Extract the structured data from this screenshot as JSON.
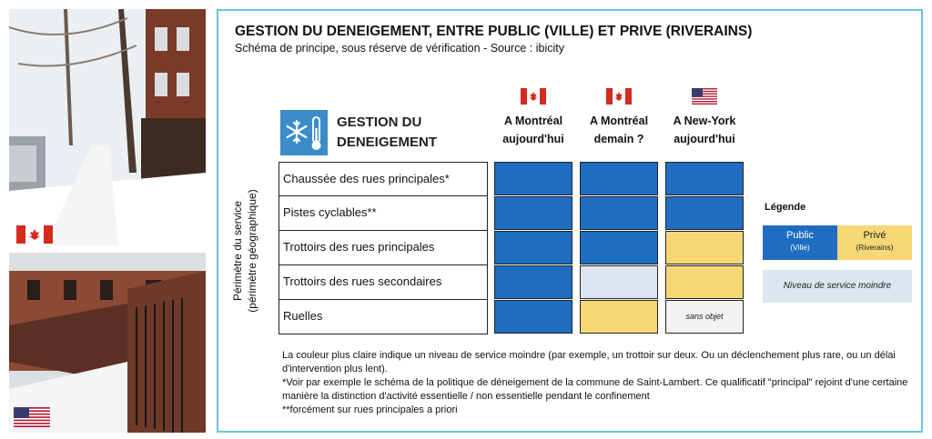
{
  "title": "GESTION DU DENEIGEMENT, ENTRE PUBLIC (VILLE) ET PRIVE (RIVERAINS)",
  "subtitle": "Schéma de principe, sous réserve de vérification - Source : ibicity",
  "header": {
    "icon": "snowflake-thermometer-icon",
    "label_line1": "GESTION DU",
    "label_line2": "DENEIGEMENT"
  },
  "columns": [
    {
      "flag": "canada-flag-icon",
      "line1": "A Montréal",
      "line2": "aujourd'hui"
    },
    {
      "flag": "canada-flag-icon",
      "line1": "A Montréal",
      "line2": "demain ?"
    },
    {
      "flag": "usa-flag-icon",
      "line1": "A New-York",
      "line2": "aujourd'hui"
    }
  ],
  "vertical_label": {
    "line1": "Périmètre du service",
    "line2": "(périmètre géographique)"
  },
  "rows": [
    {
      "label": "Chaussée des rues principales*",
      "cells": [
        {
          "status": "public",
          "text": ""
        },
        {
          "status": "public",
          "text": ""
        },
        {
          "status": "public",
          "text": ""
        }
      ]
    },
    {
      "label": "Pistes cyclables**",
      "cells": [
        {
          "status": "public",
          "text": ""
        },
        {
          "status": "public",
          "text": ""
        },
        {
          "status": "public",
          "text": ""
        }
      ]
    },
    {
      "label": "Trottoirs des rues principales",
      "cells": [
        {
          "status": "public",
          "text": ""
        },
        {
          "status": "public",
          "text": ""
        },
        {
          "status": "prive",
          "text": ""
        }
      ]
    },
    {
      "label": "Trottoirs des rues secondaires",
      "cells": [
        {
          "status": "public",
          "text": ""
        },
        {
          "status": "light",
          "text": ""
        },
        {
          "status": "prive",
          "text": ""
        }
      ]
    },
    {
      "label": "Ruelles",
      "cells": [
        {
          "status": "public",
          "text": ""
        },
        {
          "status": "prive",
          "text": ""
        },
        {
          "status": "na",
          "text": "sans objet"
        }
      ]
    }
  ],
  "legend": {
    "title": "Légende",
    "public_label": "Public",
    "public_sub": "(Ville)",
    "prive_label": "Privé",
    "prive_sub": "(Riverains)",
    "light_label": "Niveau de service moindre"
  },
  "notes": [
    "La couleur plus claire indique un niveau de service moindre (par exemple, un trottoir sur deux. Ou un déclenchement plus rare, ou un délai d'intervention plus lent).",
    "*Voir par exemple le schéma de la politique de déneigement de la commune de Saint-Lambert. Ce qualificatif \"principal\" rejoint d'une certaine manière la distinction d'activité essentielle / non essentielle pendant le confinement",
    "**forcément sur rues principales a priori"
  ],
  "photos": {
    "top": {
      "subject": "snowy-montreal-street",
      "flag": "canada-flag-icon"
    },
    "bottom": {
      "subject": "snowy-new-york-brownstones",
      "flag": "usa-flag-icon"
    }
  },
  "colors": {
    "public": "#1f6dc0",
    "prive": "#f6d775",
    "light": "#dce5f0",
    "na": "#f2f2f2",
    "panel_border": "#6cc4dc",
    "icon_bg": "#3b8cc9"
  }
}
